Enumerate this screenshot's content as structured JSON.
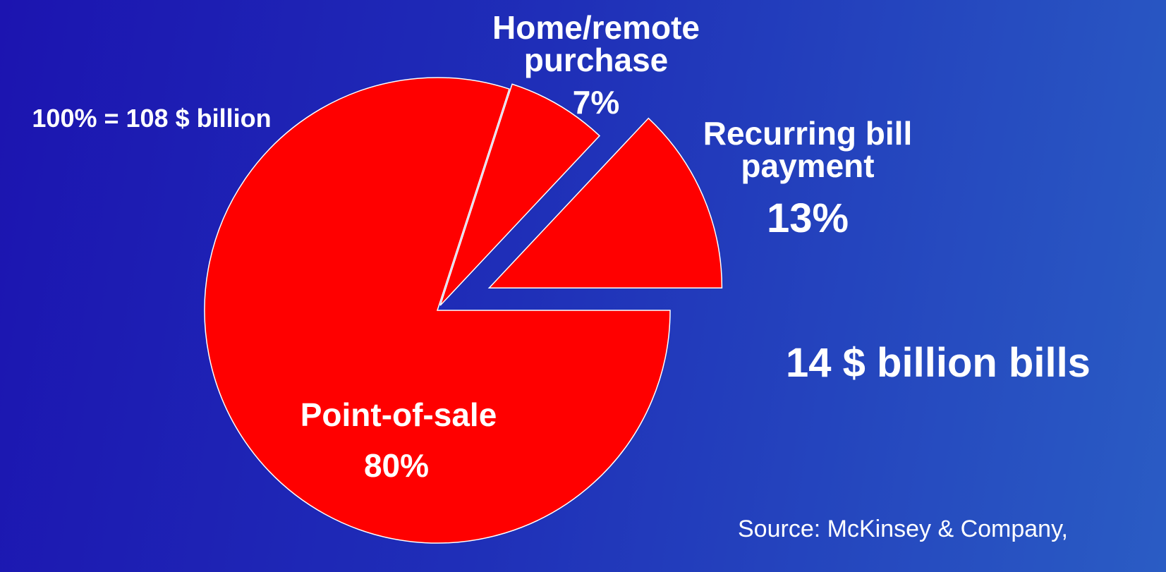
{
  "chart_data": {
    "type": "pie",
    "categories": [
      "Point-of-sale",
      "Home/remote purchase",
      "Recurring bill payment"
    ],
    "values": [
      80,
      7,
      13
    ],
    "value_labels": [
      "80%",
      "7%",
      "13%"
    ],
    "colors": [
      "#ff0000",
      "#ff0000",
      "#ff0000"
    ],
    "annotations": [
      "100% = 108 $ billion",
      "14 $ billion bills"
    ],
    "source": "Source:  McKinsey & Company,"
  }
}
